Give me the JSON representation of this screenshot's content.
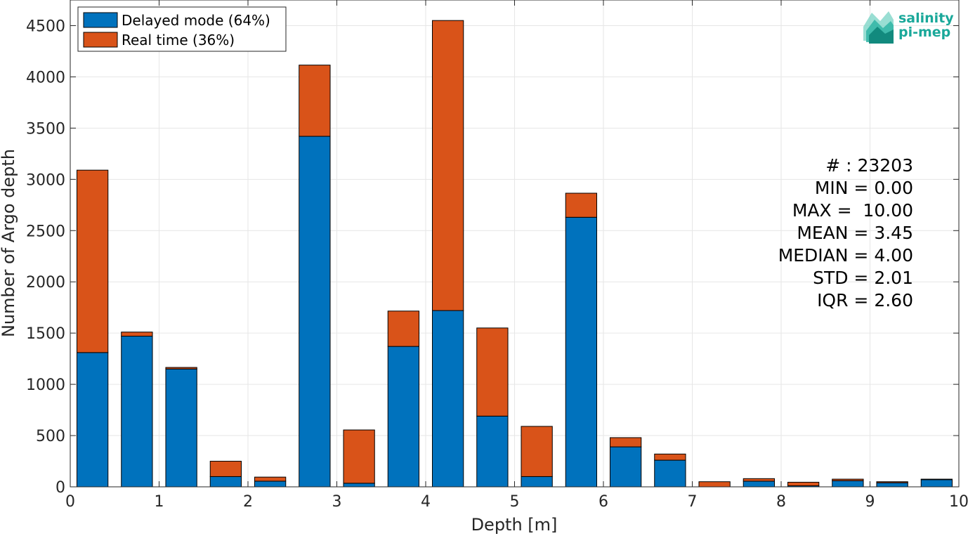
{
  "chart_data": {
    "type": "bar",
    "stacked": true,
    "bin_width": 0.5,
    "x": [
      0.25,
      0.75,
      1.25,
      1.75,
      2.25,
      2.75,
      3.25,
      3.75,
      4.25,
      4.75,
      5.25,
      5.75,
      6.25,
      6.75,
      7.25,
      7.75,
      8.25,
      8.75,
      9.25,
      9.75
    ],
    "series": [
      {
        "name": "Delayed mode (64%)",
        "color": "#0072bd",
        "values": [
          1310,
          1470,
          1150,
          100,
          55,
          3420,
          35,
          1370,
          1720,
          690,
          100,
          2630,
          390,
          260,
          0,
          55,
          10,
          60,
          40,
          70
        ]
      },
      {
        "name": "Real time (36%)",
        "color": "#d95319",
        "values": [
          1780,
          40,
          15,
          150,
          40,
          695,
          520,
          345,
          2830,
          860,
          490,
          235,
          90,
          60,
          50,
          25,
          35,
          15,
          10,
          5
        ]
      }
    ],
    "xlabel": "Depth [m]",
    "ylabel": "Number of Argo depth",
    "xlim": [
      0,
      10
    ],
    "ylim": [
      0,
      4750
    ],
    "xticks": [
      0,
      1,
      2,
      3,
      4,
      5,
      6,
      7,
      8,
      9,
      10
    ],
    "yticks": [
      0,
      500,
      1000,
      1500,
      2000,
      2500,
      3000,
      3500,
      4000,
      4500
    ],
    "grid": true,
    "legend_position": "top-left"
  },
  "stats": [
    "# : 23203",
    "MIN = 0.00",
    "MAX =  10.00",
    "MEAN = 3.45",
    "MEDIAN = 4.00",
    "STD = 2.01",
    "IQR = 2.60"
  ],
  "logo": {
    "line1": "salinity",
    "line2": "pi-mep",
    "color": "#1aa89a"
  }
}
